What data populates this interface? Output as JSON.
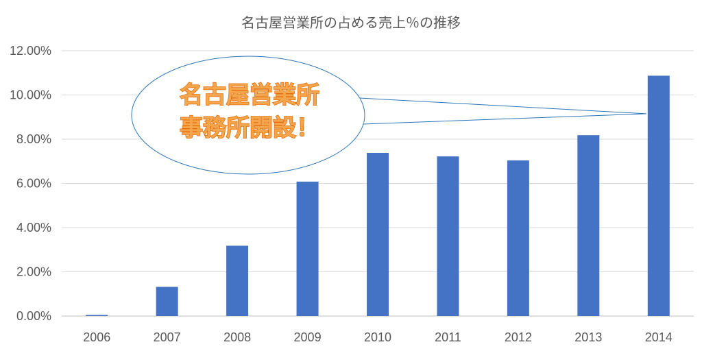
{
  "chart_data": {
    "type": "bar",
    "title": "名古屋営業所の占める売上％の推移",
    "categories": [
      "2006",
      "2007",
      "2008",
      "2009",
      "2010",
      "2011",
      "2012",
      "2013",
      "2014"
    ],
    "values": [
      0.05,
      1.32,
      3.18,
      6.08,
      7.38,
      7.22,
      7.04,
      8.18,
      10.87
    ],
    "ylim": [
      0,
      12
    ],
    "yticks": [
      0,
      2,
      4,
      6,
      8,
      10,
      12
    ],
    "ytick_labels": [
      "0.00%",
      "2.00%",
      "4.00%",
      "6.00%",
      "8.00%",
      "10.00%",
      "12.00%"
    ],
    "grid": true,
    "bar_color": "#4472c4",
    "annotation": {
      "lines": [
        "名古屋営業所",
        "事務所開設！"
      ],
      "points_to": "2014",
      "text_color": "#f5a64d",
      "outline_color": "#2e75b6"
    }
  }
}
